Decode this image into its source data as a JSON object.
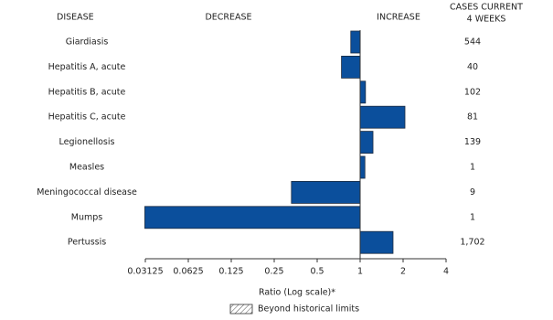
{
  "chart_data": {
    "type": "bar",
    "orientation": "horizontal",
    "log_scale": true,
    "headers": {
      "disease": "DISEASE",
      "decrease": "DECREASE",
      "increase": "INCREASE",
      "cases_line1": "CASES CURRENT",
      "cases_line2": "4 WEEKS"
    },
    "categories": [
      "Giardiasis",
      "Hepatitis A, acute",
      "Hepatitis B, acute",
      "Hepatitis C, acute",
      "Legionellosis",
      "Measles",
      "Meningococcal disease",
      "Mumps",
      "Pertussis"
    ],
    "values": [
      0.86,
      0.74,
      1.09,
      2.06,
      1.23,
      1.08,
      0.33,
      0.031,
      1.7
    ],
    "cases": [
      544,
      40,
      102,
      81,
      139,
      1,
      9,
      1,
      1702
    ],
    "cases_labels": [
      "544",
      "40",
      "102",
      "81",
      "139",
      "1",
      "9",
      "1",
      "1,702"
    ],
    "color": "#0b4f9c",
    "xlim": [
      0.03125,
      4
    ],
    "xticks": [
      0.03125,
      0.0625,
      0.125,
      0.25,
      0.5,
      1,
      2,
      4
    ],
    "x_label": "Ratio (Log scale)*",
    "legend": "Beyond historical limits"
  }
}
